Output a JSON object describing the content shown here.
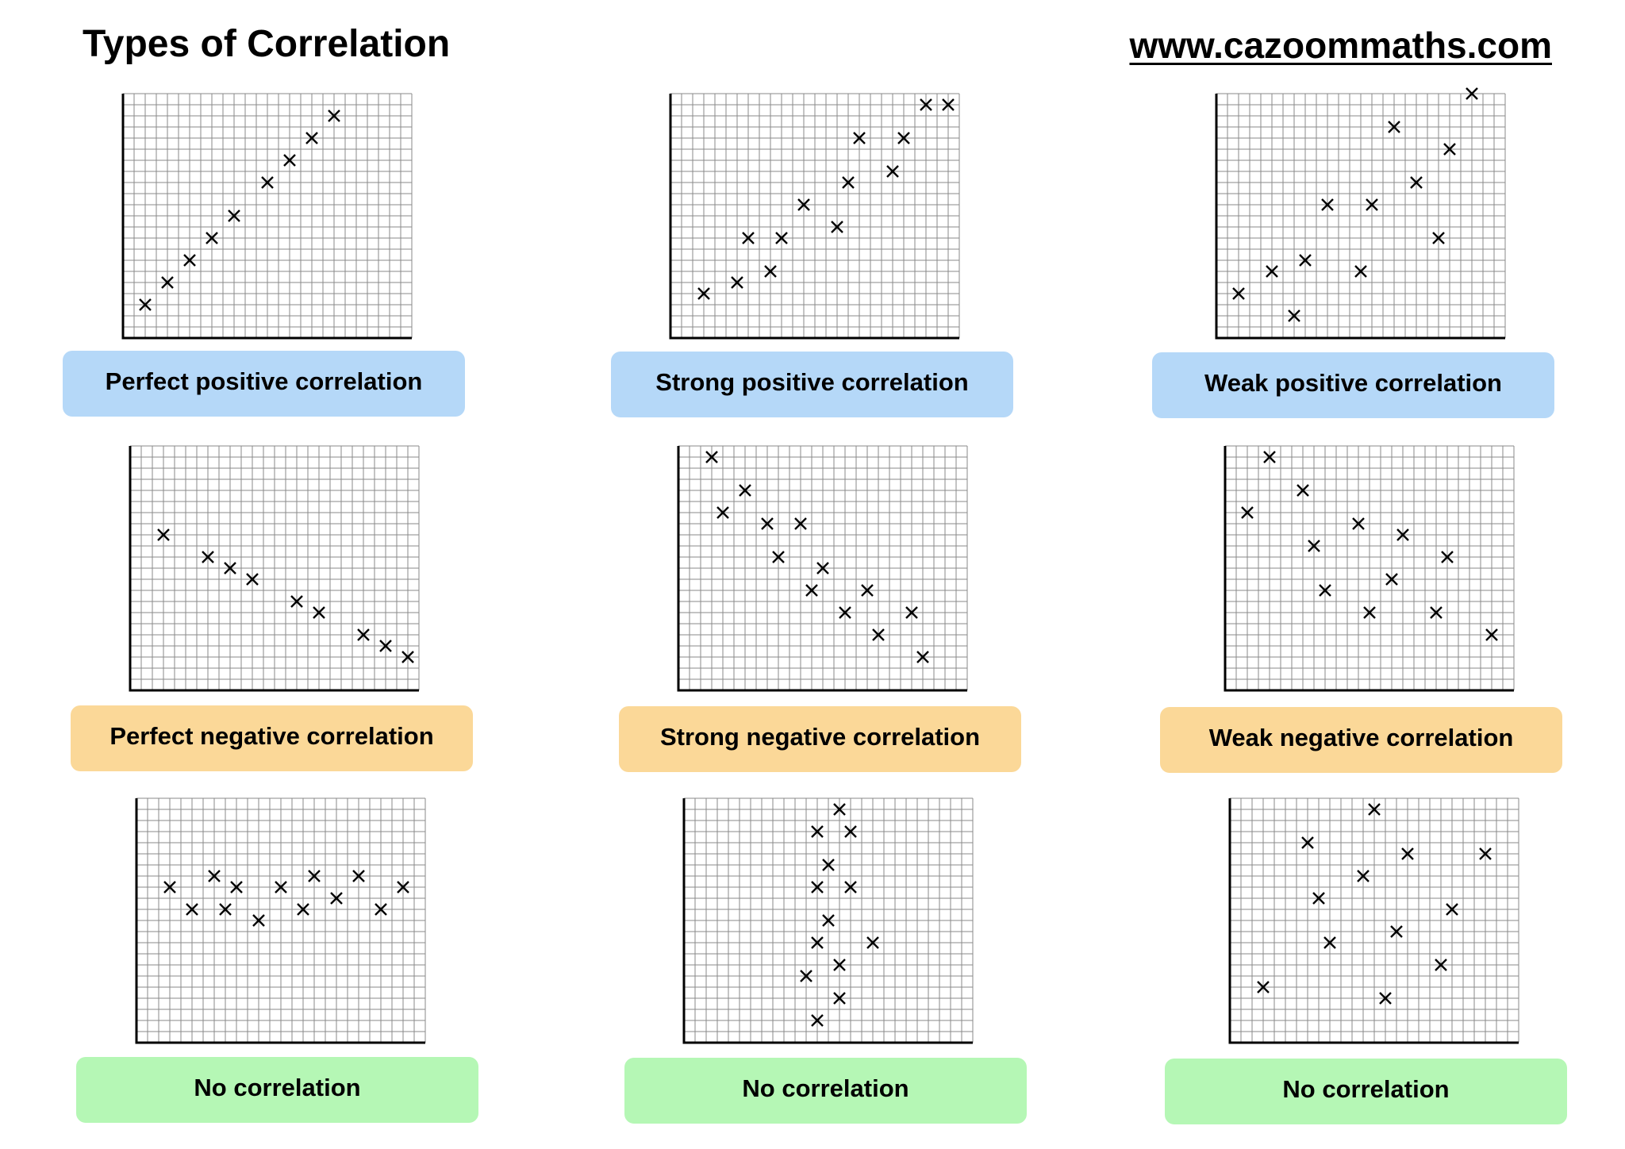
{
  "header": {
    "title": "Types of Correlation",
    "website": "www.cazoommaths.com"
  },
  "colors": {
    "positive": "#b5d8f8",
    "negative": "#fbd898",
    "none": "#b5f7b5",
    "grid": "#8a8a8a",
    "axis": "#000000"
  },
  "chart_data": [
    {
      "type": "scatter",
      "label": "Perfect positive correlation",
      "category": "positive",
      "grid": true,
      "marker": "x",
      "xlim": [
        0,
        26
      ],
      "ylim": [
        0,
        22
      ],
      "points": [
        [
          2,
          3
        ],
        [
          4,
          5
        ],
        [
          6,
          7
        ],
        [
          8,
          9
        ],
        [
          10,
          11
        ],
        [
          13,
          14
        ],
        [
          15,
          16
        ],
        [
          17,
          18
        ],
        [
          19,
          20
        ]
      ]
    },
    {
      "type": "scatter",
      "label": "Strong positive correlation",
      "category": "positive",
      "grid": true,
      "marker": "x",
      "xlim": [
        0,
        26
      ],
      "ylim": [
        0,
        22
      ],
      "points": [
        [
          3,
          4
        ],
        [
          6,
          5
        ],
        [
          9,
          6
        ],
        [
          7,
          9
        ],
        [
          10,
          9
        ],
        [
          12,
          12
        ],
        [
          15,
          10
        ],
        [
          16,
          14
        ],
        [
          17,
          18
        ],
        [
          20,
          15
        ],
        [
          21,
          18
        ],
        [
          23,
          21
        ],
        [
          25,
          21
        ]
      ]
    },
    {
      "type": "scatter",
      "label": "Weak positive correlation",
      "category": "positive",
      "grid": true,
      "marker": "x",
      "xlim": [
        0,
        26
      ],
      "ylim": [
        0,
        22
      ],
      "points": [
        [
          2,
          4
        ],
        [
          5,
          6
        ],
        [
          7,
          2
        ],
        [
          8,
          7
        ],
        [
          10,
          12
        ],
        [
          13,
          6
        ],
        [
          14,
          12
        ],
        [
          16,
          19
        ],
        [
          18,
          14
        ],
        [
          20,
          9
        ],
        [
          21,
          17
        ],
        [
          23,
          22
        ]
      ]
    },
    {
      "type": "scatter",
      "label": "Perfect negative correlation",
      "category": "negative",
      "grid": true,
      "marker": "x",
      "xlim": [
        0,
        26
      ],
      "ylim": [
        0,
        22
      ],
      "points": [
        [
          3,
          14
        ],
        [
          7,
          12
        ],
        [
          9,
          11
        ],
        [
          11,
          10
        ],
        [
          15,
          8
        ],
        [
          17,
          7
        ],
        [
          21,
          5
        ],
        [
          23,
          4
        ],
        [
          25,
          3
        ]
      ]
    },
    {
      "type": "scatter",
      "label": "Strong negative correlation",
      "category": "negative",
      "grid": true,
      "marker": "x",
      "xlim": [
        0,
        26
      ],
      "ylim": [
        0,
        22
      ],
      "points": [
        [
          3,
          21
        ],
        [
          4,
          16
        ],
        [
          6,
          18
        ],
        [
          8,
          15
        ],
        [
          9,
          12
        ],
        [
          11,
          15
        ],
        [
          12,
          9
        ],
        [
          13,
          11
        ],
        [
          15,
          7
        ],
        [
          17,
          9
        ],
        [
          18,
          5
        ],
        [
          21,
          7
        ],
        [
          22,
          3
        ]
      ]
    },
    {
      "type": "scatter",
      "label": "Weak negative correlation",
      "category": "negative",
      "grid": true,
      "marker": "x",
      "xlim": [
        0,
        26
      ],
      "ylim": [
        0,
        22
      ],
      "points": [
        [
          2,
          16
        ],
        [
          4,
          21
        ],
        [
          7,
          18
        ],
        [
          8,
          13
        ],
        [
          9,
          9
        ],
        [
          12,
          15
        ],
        [
          13,
          7
        ],
        [
          15,
          10
        ],
        [
          16,
          14
        ],
        [
          19,
          7
        ],
        [
          20,
          12
        ],
        [
          24,
          5
        ]
      ]
    },
    {
      "type": "scatter",
      "label": "No correlation",
      "category": "none",
      "grid": true,
      "marker": "x",
      "xlim": [
        0,
        26
      ],
      "ylim": [
        0,
        22
      ],
      "points": [
        [
          3,
          14
        ],
        [
          5,
          12
        ],
        [
          7,
          15
        ],
        [
          8,
          12
        ],
        [
          9,
          14
        ],
        [
          11,
          11
        ],
        [
          13,
          14
        ],
        [
          15,
          12
        ],
        [
          16,
          15
        ],
        [
          18,
          13
        ],
        [
          20,
          15
        ],
        [
          22,
          12
        ],
        [
          24,
          14
        ]
      ]
    },
    {
      "type": "scatter",
      "label": "No correlation",
      "category": "none",
      "grid": true,
      "marker": "x",
      "xlim": [
        0,
        26
      ],
      "ylim": [
        0,
        22
      ],
      "points": [
        [
          14,
          21
        ],
        [
          12,
          19
        ],
        [
          15,
          19
        ],
        [
          13,
          16
        ],
        [
          12,
          14
        ],
        [
          15,
          14
        ],
        [
          13,
          11
        ],
        [
          12,
          9
        ],
        [
          17,
          9
        ],
        [
          11,
          6
        ],
        [
          14,
          7
        ],
        [
          14,
          4
        ],
        [
          12,
          2
        ]
      ]
    },
    {
      "type": "scatter",
      "label": "No correlation",
      "category": "none",
      "grid": true,
      "marker": "x",
      "xlim": [
        0,
        26
      ],
      "ylim": [
        0,
        22
      ],
      "points": [
        [
          3,
          5
        ],
        [
          7,
          18
        ],
        [
          8,
          13
        ],
        [
          9,
          9
        ],
        [
          12,
          15
        ],
        [
          13,
          21
        ],
        [
          14,
          4
        ],
        [
          15,
          10
        ],
        [
          16,
          17
        ],
        [
          19,
          7
        ],
        [
          20,
          12
        ],
        [
          23,
          17
        ]
      ]
    }
  ]
}
